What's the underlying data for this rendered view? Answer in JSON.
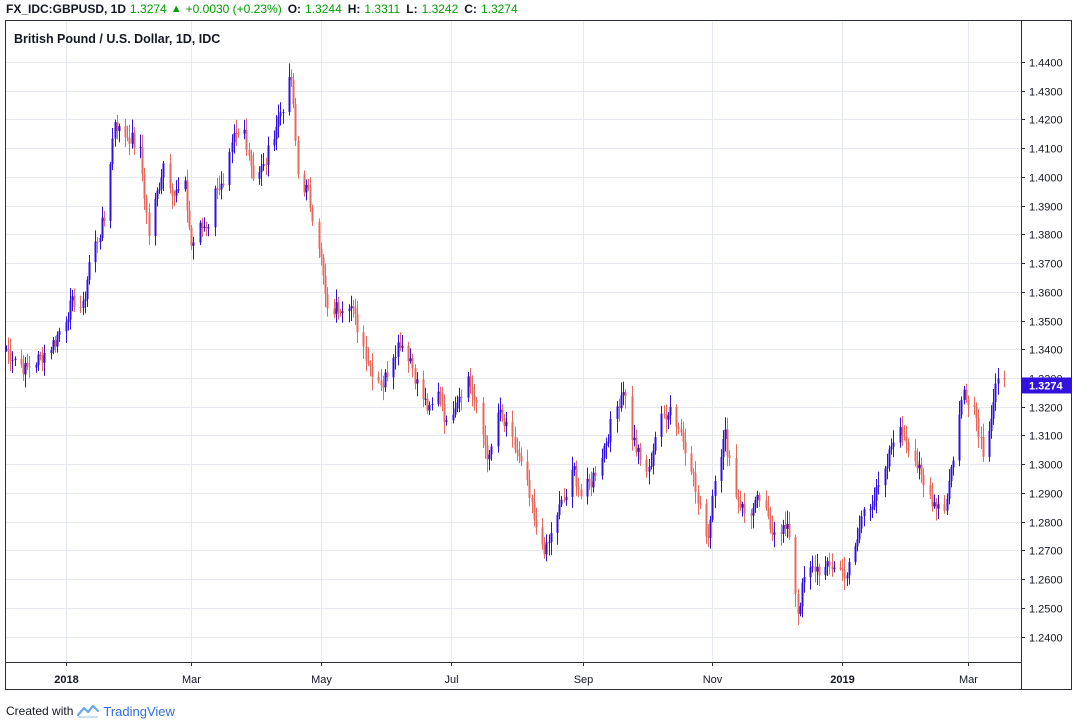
{
  "header": {
    "symbol": "FX_IDC:GBPUSD, 1D",
    "last": "1.3274",
    "change": "+0.0030 (+0.23%)",
    "open_label": "O:",
    "open": "1.3244",
    "high_label": "H:",
    "high": "1.3311",
    "low_label": "L:",
    "low": "1.3242",
    "close_label": "C:",
    "close": "1.3274",
    "up_color": "#00a000"
  },
  "footer": {
    "created_with": "Created with",
    "brand": "TradingView"
  },
  "colors": {
    "up": "#3311dd",
    "down": "#e86a5f",
    "price_tag": "#3311dd",
    "grid": "#e6eaf0"
  },
  "chart_data": {
    "type": "candlestick",
    "title": "British Pound / U.S. Dollar, 1D, IDC",
    "y_ticks": [
      "1.4400",
      "1.4300",
      "1.4200",
      "1.4100",
      "1.4000",
      "1.3900",
      "1.3800",
      "1.3700",
      "1.3600",
      "1.3500",
      "1.3400",
      "1.3300",
      "1.3200",
      "1.3100",
      "1.3000",
      "1.2900",
      "1.2800",
      "1.2700",
      "1.2600",
      "1.2500",
      "1.2400"
    ],
    "y_range": [
      1.2312,
      1.4542
    ],
    "x_ticks": [
      "2018",
      "Mar",
      "May",
      "Jul",
      "Sep",
      "Nov",
      "2019",
      "Mar"
    ],
    "last_price": "1.3274",
    "grid": true,
    "price_path": [
      [
        "2017-12-04",
        1.34
      ],
      [
        "2017-12-08",
        1.337
      ],
      [
        "2017-12-13",
        1.333
      ],
      [
        "2017-12-20",
        1.337
      ],
      [
        "2017-12-27",
        1.343
      ],
      [
        "2018-01-02",
        1.353
      ],
      [
        "2018-01-05",
        1.357
      ],
      [
        "2018-01-09",
        1.354
      ],
      [
        "2018-01-12",
        1.37
      ],
      [
        "2018-01-19",
        1.385
      ],
      [
        "2018-01-24",
        1.42
      ],
      [
        "2018-01-26",
        1.416
      ],
      [
        "2018-01-31",
        1.414
      ],
      [
        "2018-02-05",
        1.408
      ],
      [
        "2018-02-09",
        1.38
      ],
      [
        "2018-02-16",
        1.405
      ],
      [
        "2018-02-21",
        1.394
      ],
      [
        "2018-02-26",
        1.396
      ],
      [
        "2018-03-01",
        1.376
      ],
      [
        "2018-03-05",
        1.382
      ],
      [
        "2018-03-09",
        1.384
      ],
      [
        "2018-03-13",
        1.398
      ],
      [
        "2018-03-16",
        1.395
      ],
      [
        "2018-03-21",
        1.413
      ],
      [
        "2018-03-26",
        1.416
      ],
      [
        "2018-03-30",
        1.401
      ],
      [
        "2018-04-04",
        1.403
      ],
      [
        "2018-04-09",
        1.416
      ],
      [
        "2018-04-13",
        1.425
      ],
      [
        "2018-04-17",
        1.434
      ],
      [
        "2018-04-20",
        1.401
      ],
      [
        "2018-04-25",
        1.394
      ],
      [
        "2018-04-30",
        1.377
      ],
      [
        "2018-05-04",
        1.352
      ],
      [
        "2018-05-09",
        1.355
      ],
      [
        "2018-05-14",
        1.357
      ],
      [
        "2018-05-18",
        1.348
      ],
      [
        "2018-05-24",
        1.334
      ],
      [
        "2018-05-30",
        1.328
      ],
      [
        "2018-06-04",
        1.339
      ],
      [
        "2018-06-07",
        1.343
      ],
      [
        "2018-06-12",
        1.337
      ],
      [
        "2018-06-15",
        1.328
      ],
      [
        "2018-06-21",
        1.318
      ],
      [
        "2018-06-26",
        1.326
      ],
      [
        "2018-06-29",
        1.313
      ],
      [
        "2018-07-03",
        1.322
      ],
      [
        "2018-07-09",
        1.33
      ],
      [
        "2018-07-12",
        1.322
      ],
      [
        "2018-07-19",
        1.301
      ],
      [
        "2018-07-23",
        1.318
      ],
      [
        "2018-07-27",
        1.312
      ],
      [
        "2018-08-01",
        1.304
      ],
      [
        "2018-08-06",
        1.292
      ],
      [
        "2018-08-10",
        1.276
      ],
      [
        "2018-08-15",
        1.27
      ],
      [
        "2018-08-20",
        1.283
      ],
      [
        "2018-08-24",
        1.289
      ],
      [
        "2018-08-28",
        1.298
      ],
      [
        "2018-08-31",
        1.289
      ],
      [
        "2018-09-05",
        1.294
      ],
      [
        "2018-09-10",
        1.304
      ],
      [
        "2018-09-14",
        1.313
      ],
      [
        "2018-09-20",
        1.327
      ],
      [
        "2018-09-24",
        1.31
      ],
      [
        "2018-09-28",
        1.301
      ],
      [
        "2018-10-02",
        1.297
      ],
      [
        "2018-10-05",
        1.31
      ],
      [
        "2018-10-09",
        1.317
      ],
      [
        "2018-10-12",
        1.32
      ],
      [
        "2018-10-17",
        1.311
      ],
      [
        "2018-10-22",
        1.3
      ],
      [
        "2018-10-25",
        1.286
      ],
      [
        "2018-10-30",
        1.275
      ],
      [
        "2018-11-02",
        1.297
      ],
      [
        "2018-11-07",
        1.31
      ],
      [
        "2018-11-12",
        1.29
      ],
      [
        "2018-11-16",
        1.283
      ],
      [
        "2018-11-20",
        1.284
      ],
      [
        "2018-11-23",
        1.288
      ],
      [
        "2018-11-28",
        1.278
      ],
      [
        "2018-12-03",
        1.278
      ],
      [
        "2018-12-07",
        1.276
      ],
      [
        "2018-12-11",
        1.249
      ],
      [
        "2018-12-14",
        1.26
      ],
      [
        "2018-12-19",
        1.264
      ],
      [
        "2018-12-24",
        1.263
      ],
      [
        "2018-12-28",
        1.265
      ],
      [
        "2019-01-03",
        1.262
      ],
      [
        "2019-01-07",
        1.27
      ],
      [
        "2019-01-11",
        1.285
      ],
      [
        "2019-01-16",
        1.288
      ],
      [
        "2019-01-21",
        1.296
      ],
      [
        "2019-01-25",
        1.31
      ],
      [
        "2019-01-30",
        1.311
      ],
      [
        "2019-02-04",
        1.302
      ],
      [
        "2019-02-08",
        1.292
      ],
      [
        "2019-02-13",
        1.287
      ],
      [
        "2019-02-18",
        1.285
      ],
      [
        "2019-02-22",
        1.303
      ],
      [
        "2019-02-27",
        1.326
      ],
      [
        "2019-03-04",
        1.32
      ],
      [
        "2019-03-08",
        1.305
      ],
      [
        "2019-03-12",
        1.317
      ],
      [
        "2019-03-14",
        1.327
      ],
      [
        "2019-03-18",
        1.3274
      ]
    ]
  }
}
